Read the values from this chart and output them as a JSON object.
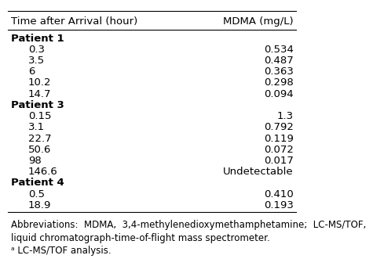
{
  "col1_header": "Time after Arrival (hour)",
  "col2_header": "MDMA (mg/L)",
  "rows": [
    {
      "label": "Patient 1",
      "is_header": true,
      "time": "",
      "mdma": ""
    },
    {
      "label": "",
      "is_header": false,
      "time": "0.3",
      "mdma": "0.534"
    },
    {
      "label": "",
      "is_header": false,
      "time": "3.5",
      "mdma": "0.487"
    },
    {
      "label": "",
      "is_header": false,
      "time": "6",
      "mdma": "0.363"
    },
    {
      "label": "",
      "is_header": false,
      "time": "10.2",
      "mdma": "0.298"
    },
    {
      "label": "",
      "is_header": false,
      "time": "14.7",
      "mdma": "0.094"
    },
    {
      "label": "Patient 3",
      "is_header": true,
      "time": "",
      "mdma": ""
    },
    {
      "label": "",
      "is_header": false,
      "time": "0.15",
      "mdma": "1.3"
    },
    {
      "label": "",
      "is_header": false,
      "time": "3.1",
      "mdma": "0.792"
    },
    {
      "label": "",
      "is_header": false,
      "time": "22.7",
      "mdma": "0.119"
    },
    {
      "label": "",
      "is_header": false,
      "time": "50.6",
      "mdma": "0.072"
    },
    {
      "label": "",
      "is_header": false,
      "time": "98",
      "mdma": "0.017"
    },
    {
      "label": "",
      "is_header": false,
      "time": "146.6",
      "mdma": "Undetectable"
    },
    {
      "label": "Patient 4",
      "is_header": true,
      "time": "",
      "mdma": ""
    },
    {
      "label": "",
      "is_header": false,
      "time": "0.5",
      "mdma": "0.410"
    },
    {
      "label": "",
      "is_header": false,
      "time": "18.9",
      "mdma": "0.193"
    }
  ],
  "footnote1": "Abbreviations:  MDMA,  3,4-methylenedioxymethamphetamine;  LC-MS/TOF,",
  "footnote2": "liquid chromatograph-time-of-flight mass spectrometer.",
  "footnote3": "ᵃ LC-MS/TOF analysis.",
  "bg_color": "#ffffff",
  "text_color": "#000000",
  "line_color": "#000000",
  "font_size": 9.5,
  "header_font_size": 9.5,
  "footnote_font_size": 8.5
}
